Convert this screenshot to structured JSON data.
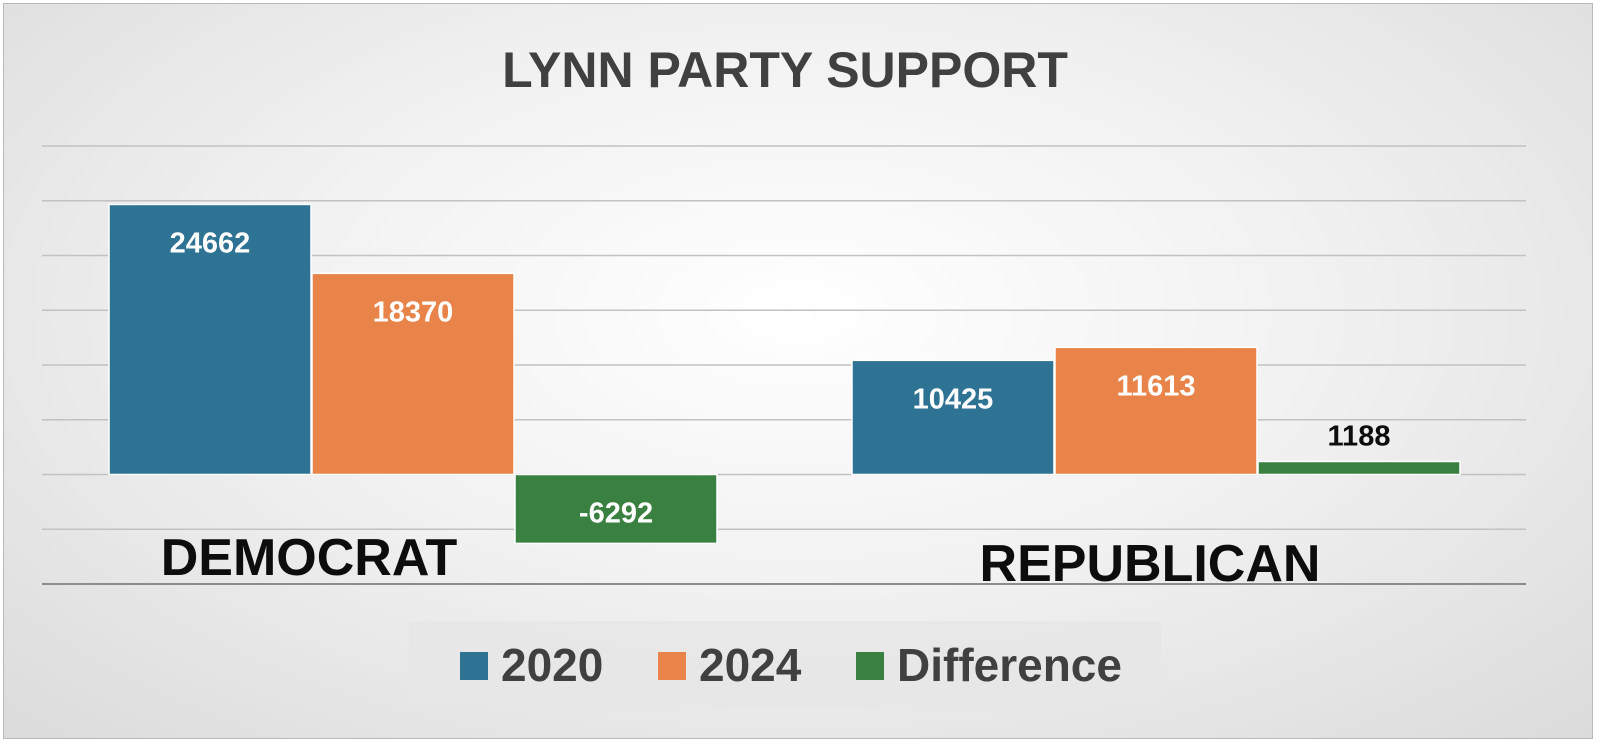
{
  "chart_data": {
    "type": "bar",
    "title": "LYNN PARTY SUPPORT",
    "categories": [
      "DEMOCRAT",
      "REPUBLICAN"
    ],
    "series": [
      {
        "name": "2020",
        "values": [
          24662,
          10425
        ],
        "color": "#2E7393"
      },
      {
        "name": "2024",
        "values": [
          18370,
          11613
        ],
        "color": "#E8834A"
      },
      {
        "name": "Difference",
        "values": [
          -6292,
          1188
        ],
        "color": "#3A8040"
      }
    ],
    "ylim": [
      -10000,
      30000
    ],
    "grid": true,
    "legend": "bottom",
    "data_labels": true
  }
}
